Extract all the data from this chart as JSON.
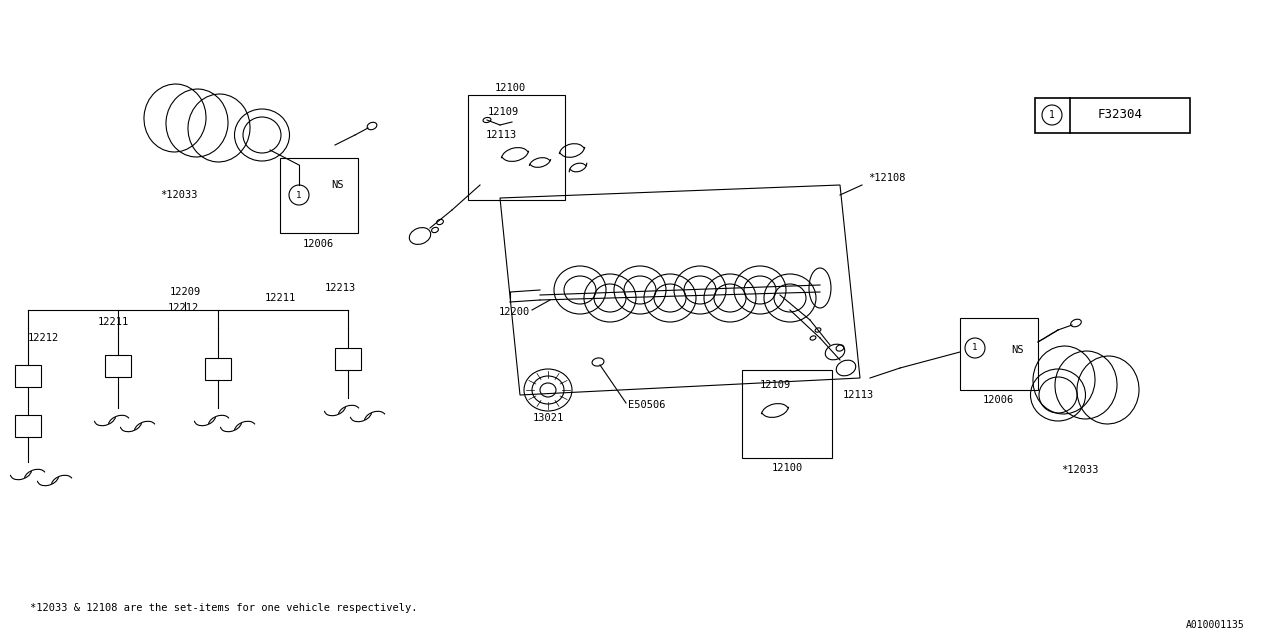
{
  "bg_color": "#ffffff",
  "line_color": "#000000",
  "fig_width": 12.8,
  "fig_height": 6.4,
  "footnote": "*12033 & 12108 are the set-items for one vehicle respectively.",
  "diagram_id": "A010001135",
  "legend_code": "F32304"
}
